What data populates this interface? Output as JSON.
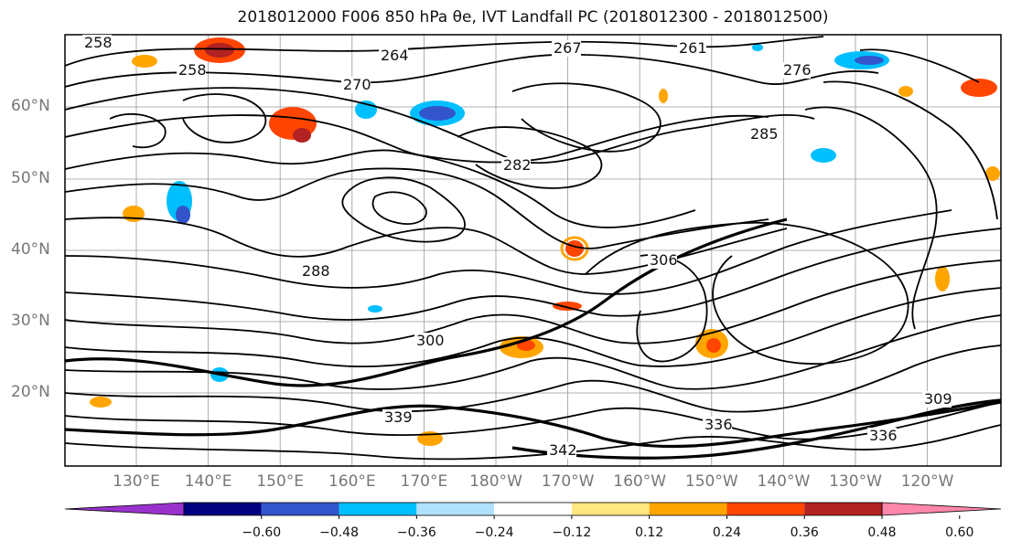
{
  "title": "2018012000 F006 850 hPa θe, IVT Landfall PC (2018012300 - 2018012500)",
  "lat_labels": [
    "60°N",
    "50°N",
    "40°N",
    "30°N",
    "20°N"
  ],
  "lon_labels": [
    "130°E",
    "140°E",
    "150°E",
    "160°E",
    "170°E",
    "180°W",
    "170°W",
    "160°W",
    "150°W",
    "140°W",
    "130°W",
    "120°W"
  ],
  "contour_labels": [
    "264",
    "267",
    "261",
    "276",
    "258",
    "258",
    "270",
    "285",
    "282",
    "288",
    "306",
    "309",
    "336",
    "336",
    "342",
    "339",
    "300"
  ],
  "colorbar": {
    "ticks": [
      "−0.60",
      "−0.48",
      "−0.36",
      "−0.24",
      "−0.12",
      "0.12",
      "0.24",
      "0.36",
      "0.48",
      "0.60"
    ],
    "colors": [
      "#9932CC",
      "#000080",
      "#3355CC",
      "#00BFFF",
      "#B0E2FF",
      "#FFFFFF",
      "#FFE680",
      "#FFA500",
      "#FF4500",
      "#B22222",
      "#FF88AA"
    ]
  }
}
